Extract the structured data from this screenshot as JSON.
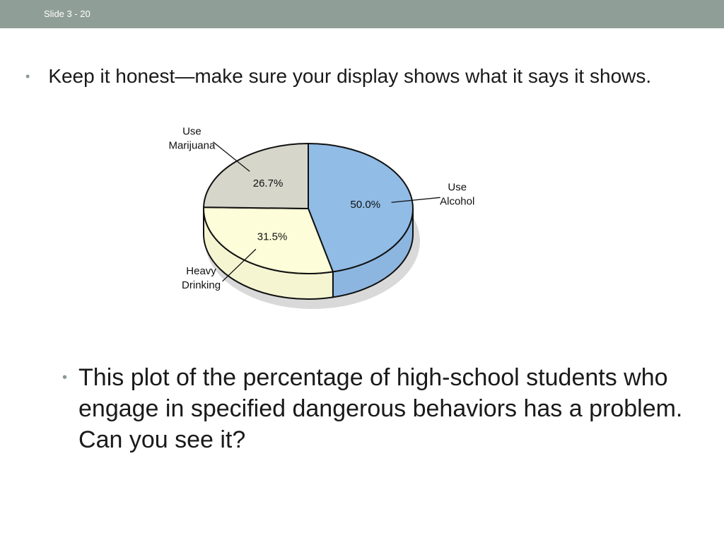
{
  "slide": {
    "number_label": "Slide 3 - 20",
    "top_bar_color": "#909e98",
    "bullet_color": "#8a9a93"
  },
  "bullets": [
    {
      "text": "Keep it honest—make sure your display shows what it says it shows."
    },
    {
      "text": "This plot of the percentage of high-school students who engage in specified dangerous behaviors has a problem. Can you see it?"
    }
  ],
  "chart_data": {
    "type": "pie",
    "title": "",
    "style": "3d",
    "slices": [
      {
        "label_lines": [
          "Use",
          "Alcohol"
        ],
        "value": 50.0,
        "value_label": "50.0%",
        "color": "#90bce6"
      },
      {
        "label_lines": [
          "Heavy",
          "Drinking"
        ],
        "value": 31.5,
        "value_label": "31.5%",
        "color": "#fdfdd9"
      },
      {
        "label_lines": [
          "Use",
          "Marijuana"
        ],
        "value": 26.7,
        "value_label": "26.7%",
        "color": "#d6d6cb"
      }
    ],
    "legend": "none"
  }
}
